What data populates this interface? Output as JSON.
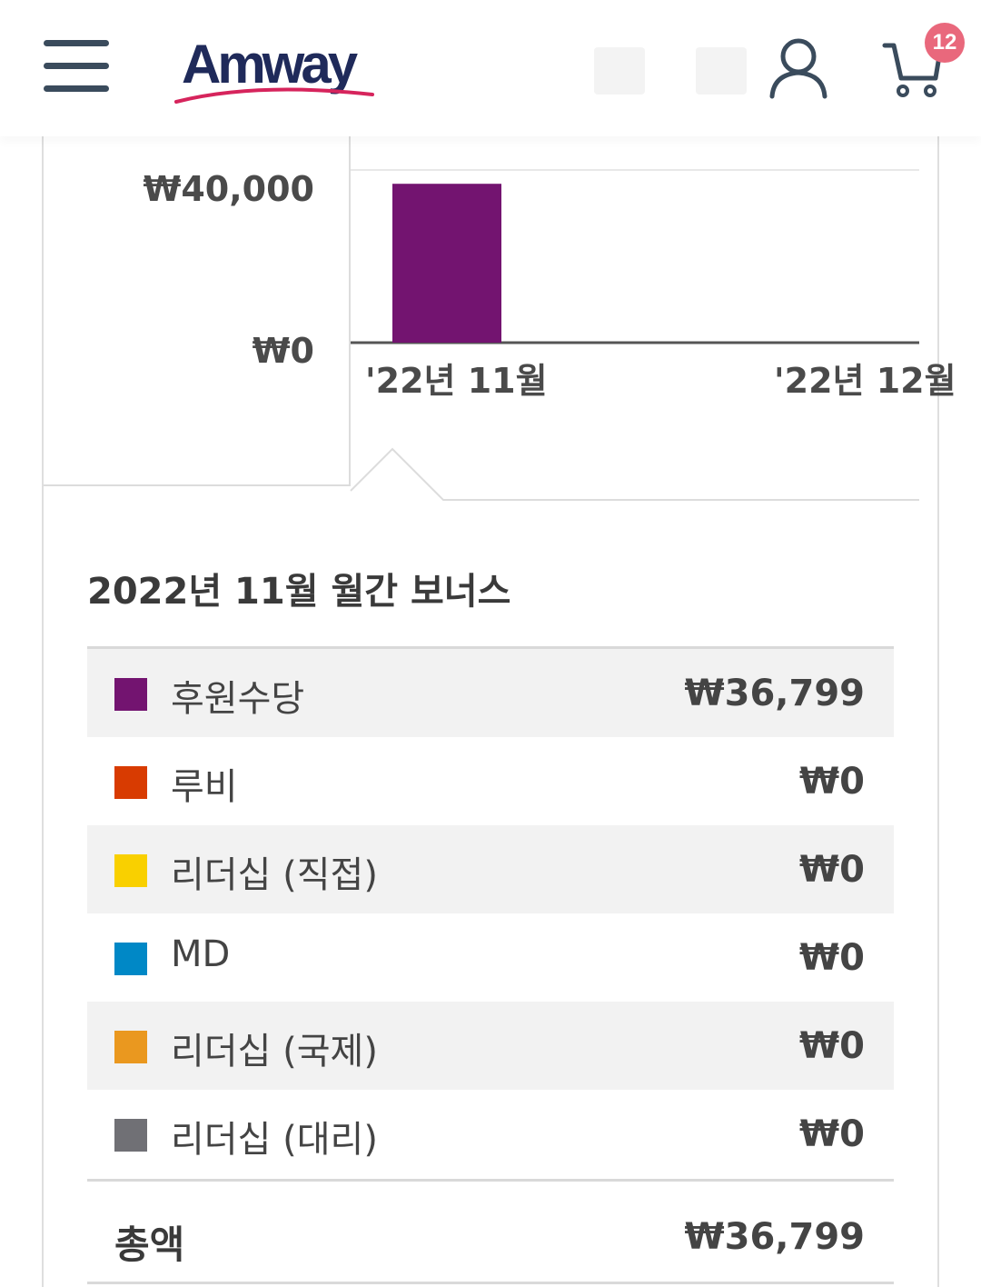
{
  "header": {
    "logo_text": "Amway",
    "cart_count": "12",
    "colors": {
      "icon": "#3a4b5c",
      "badge": "#e9687c",
      "logo_swoosh": "#d6245c"
    }
  },
  "chart_data": {
    "type": "bar",
    "categories": [
      "'22년 11월",
      "'22년 12월"
    ],
    "values": [
      36799,
      null
    ],
    "yticks": [
      "₩40,000",
      "₩0"
    ],
    "ylim": [
      0,
      40000
    ],
    "bar_color": "#731470",
    "grid": true
  },
  "bonus": {
    "title": "2022년 11월 월간 보너스",
    "rows": [
      {
        "label": "후원수당",
        "value": "₩36,799",
        "color": "#731470"
      },
      {
        "label": "루비",
        "value": "₩0",
        "color": "#d83b01"
      },
      {
        "label": "리더십 (직접)",
        "value": "₩0",
        "color": "#f9d000"
      },
      {
        "label": "MD",
        "value": "₩0",
        "color": "#0088c6"
      },
      {
        "label": "리더십 (국제)",
        "value": "₩0",
        "color": "#ea981f"
      },
      {
        "label": "리더십 (대리)",
        "value": "₩0",
        "color": "#707075"
      }
    ],
    "total_label": "총액",
    "total_value": "₩36,799"
  }
}
